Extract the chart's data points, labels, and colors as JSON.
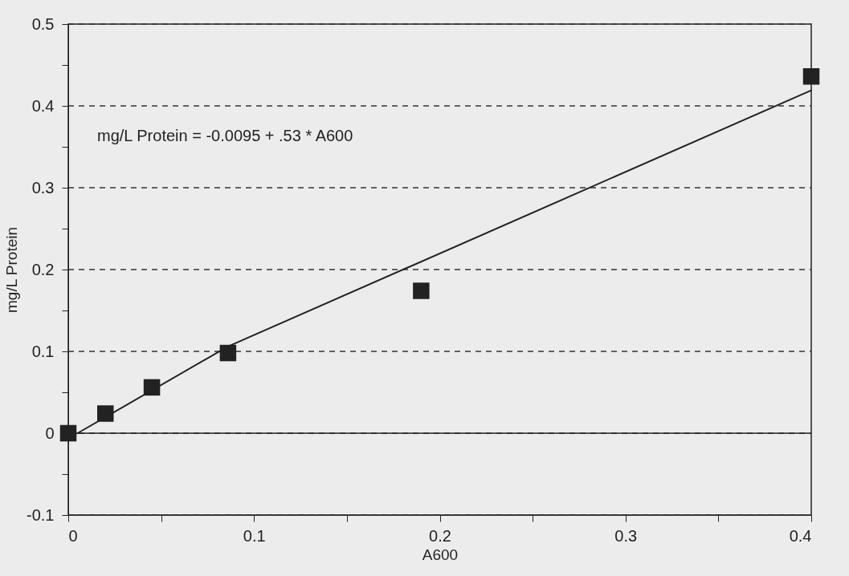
{
  "chart_data": {
    "type": "scatter",
    "xlabel": "A600",
    "ylabel": "mg/L Protein",
    "annotations": [
      "mg/L Protein = -0.0095 + .53 * A600"
    ],
    "xlim": [
      0,
      0.4
    ],
    "ylim": [
      -0.1,
      0.5
    ],
    "xticks": [
      0,
      {
        "value": 0.05,
        "label": null
      },
      0.1,
      {
        "value": 0.15,
        "label": null
      },
      0.2,
      {
        "value": 0.25,
        "label": null
      },
      0.3,
      {
        "value": 0.35,
        "label": null
      },
      0.4
    ],
    "yticks": [
      -0.1,
      {
        "value": -0.05,
        "label": null
      },
      0,
      {
        "value": 0.05,
        "label": null
      },
      0.1,
      {
        "value": 0.15,
        "label": null
      },
      0.2,
      {
        "value": 0.25,
        "label": null
      },
      0.3,
      {
        "value": 0.35,
        "label": null
      },
      0.4,
      {
        "value": 0.45,
        "label": null
      },
      0.5
    ],
    "grid": "y",
    "marker": "square",
    "ref_lines": [
      {
        "axis": "y",
        "value": 0,
        "label": null,
        "color": "#222222",
        "line_style": "solid"
      }
    ],
    "series": [
      {
        "color": "#222222",
        "x": [
          0,
          0.02,
          0.045,
          0.086,
          0.19,
          0.4
        ],
        "values": [
          0,
          0.024,
          0.056,
          0.098,
          0.174,
          0.436
        ]
      },
      {
        "type": "line",
        "color": "#222222",
        "marker": "none",
        "line_style": "solid",
        "x": [
          0.005,
          0.086,
          0.4
        ],
        "values": [
          0,
          0.106,
          0.419
        ]
      }
    ]
  }
}
